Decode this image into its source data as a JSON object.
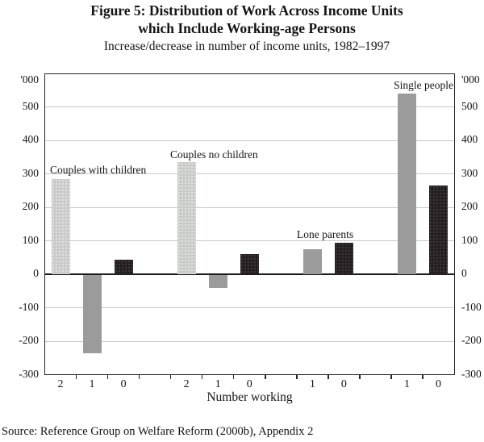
{
  "figure": {
    "title_line1": "Figure 5: Distribution of Work Across Income Units",
    "title_line2": "which Include Working-age Persons",
    "subtitle": "Increase/decrease in number of income units, 1982–1997",
    "source": "Source: Reference Group on Welfare Reform (2000b), Appendix 2"
  },
  "chart_data": {
    "type": "bar",
    "title": "Figure 5: Distribution of Work Across Income Units which Include Working-age Persons",
    "subtitle": "Increase/decrease in number of income units, 1982–1997",
    "xlabel": "Number working",
    "ylabel": "'000",
    "unit_label": "'000",
    "ylim": [
      -300,
      600
    ],
    "ytick_interval": 100,
    "yticks": [
      600,
      500,
      400,
      300,
      200,
      100,
      0,
      -100,
      -200,
      -300
    ],
    "ytick_labels": [
      "'000",
      "500",
      "400",
      "300",
      "200",
      "100",
      "0",
      "-100",
      "-200",
      "-300"
    ],
    "grid": "horizontal",
    "legend": "none",
    "axis_labels_on_both_sides": true,
    "total_slots": 13,
    "groups": [
      {
        "label": "Couples with children",
        "slots": [
          0,
          1,
          2
        ],
        "bars": [
          {
            "number_working": "2",
            "value": 285,
            "color_key": "light"
          },
          {
            "number_working": "1",
            "value": -235,
            "color_key": "medium"
          },
          {
            "number_working": "0",
            "value": 45,
            "color_key": "dark"
          }
        ]
      },
      {
        "label": "Couples no children",
        "slots": [
          4,
          5,
          6
        ],
        "bars": [
          {
            "number_working": "2",
            "value": 335,
            "color_key": "light"
          },
          {
            "number_working": "1",
            "value": -40,
            "color_key": "medium"
          },
          {
            "number_working": "0",
            "value": 60,
            "color_key": "dark"
          }
        ]
      },
      {
        "label": "Lone parents",
        "slots": [
          8,
          9
        ],
        "bars": [
          {
            "number_working": "1",
            "value": 75,
            "color_key": "medium"
          },
          {
            "number_working": "0",
            "value": 95,
            "color_key": "dark"
          }
        ]
      },
      {
        "label": "Single people",
        "slots": [
          11,
          12
        ],
        "bars": [
          {
            "number_working": "1",
            "value": 540,
            "color_key": "medium"
          },
          {
            "number_working": "0",
            "value": 265,
            "color_key": "dark"
          }
        ]
      }
    ],
    "colors": {
      "light_bar": "#c9cbc9",
      "medium_bar": "#9b9b9b",
      "dark_bar": "#241f21",
      "gridline": "#c8c8c8",
      "axis": "#262626",
      "zero_line": "#1a1a1a"
    },
    "source": "Source: Reference Group on Welfare Reform (2000b), Appendix 2"
  }
}
